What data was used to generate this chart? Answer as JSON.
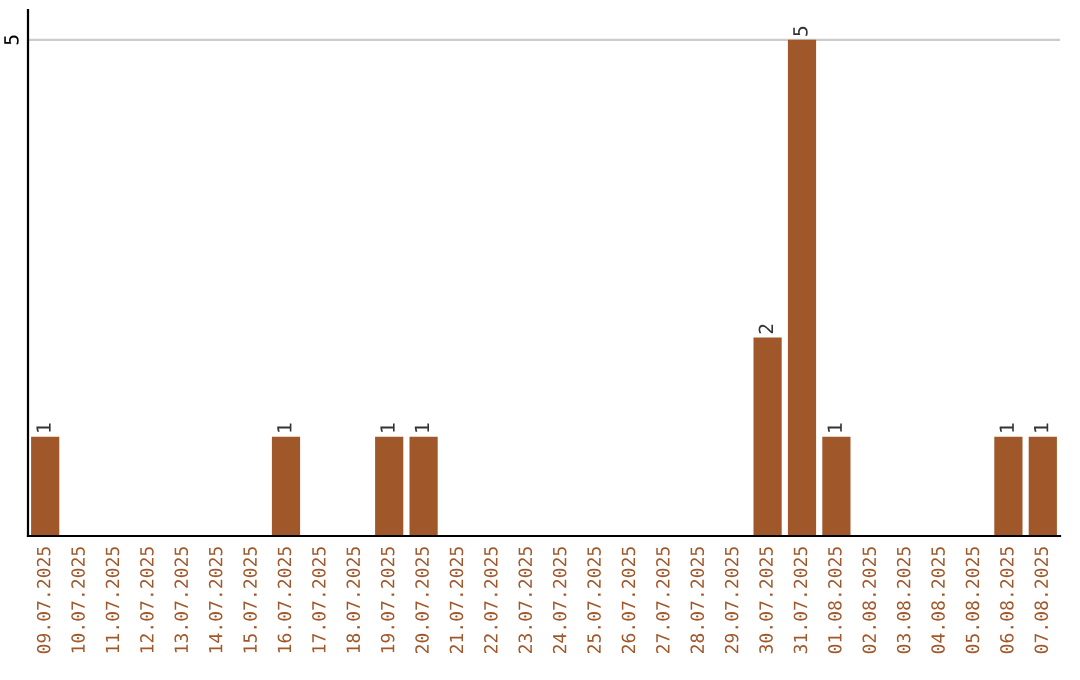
{
  "chart_data": {
    "type": "bar",
    "categories": [
      "09.07.2025",
      "10.07.2025",
      "11.07.2025",
      "12.07.2025",
      "13.07.2025",
      "14.07.2025",
      "15.07.2025",
      "16.07.2025",
      "17.07.2025",
      "18.07.2025",
      "19.07.2025",
      "20.07.2025",
      "21.07.2025",
      "22.07.2025",
      "23.07.2025",
      "24.07.2025",
      "25.07.2025",
      "26.07.2025",
      "27.07.2025",
      "28.07.2025",
      "29.07.2025",
      "30.07.2025",
      "31.07.2025",
      "01.08.2025",
      "02.08.2025",
      "03.08.2025",
      "04.08.2025",
      "05.08.2025",
      "06.08.2025",
      "07.08.2025"
    ],
    "values": [
      1,
      0,
      0,
      0,
      0,
      0,
      0,
      1,
      0,
      0,
      1,
      1,
      0,
      0,
      0,
      0,
      0,
      0,
      0,
      0,
      0,
      2,
      5,
      1,
      0,
      0,
      0,
      0,
      1,
      1
    ],
    "value_labels": [
      "1",
      null,
      null,
      null,
      null,
      null,
      null,
      "1",
      null,
      null,
      "1",
      "1",
      null,
      null,
      null,
      null,
      null,
      null,
      null,
      null,
      null,
      "2",
      "5",
      "1",
      null,
      null,
      null,
      null,
      "1",
      "1"
    ],
    "color": "#a0572a",
    "ylim": [
      0,
      5.3
    ],
    "yticks": [
      5
    ],
    "grid": "y"
  }
}
